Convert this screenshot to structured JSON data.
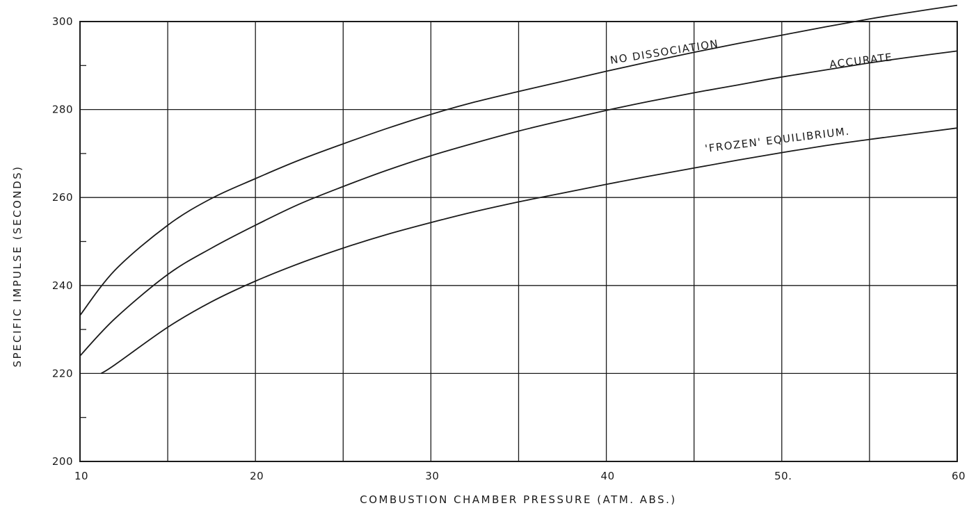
{
  "chart_data": {
    "type": "line",
    "title": "",
    "xlabel": "COMBUSTION CHAMBER PRESSURE (ATM. ABS.)",
    "ylabel": "SPECIFIC IMPULSE (SECONDS)",
    "xlim": [
      10,
      60
    ],
    "ylim": [
      200,
      300
    ],
    "x_ticks": [
      10,
      20,
      30,
      40,
      50,
      60
    ],
    "x_tick_labels": [
      "10",
      "20",
      "30",
      "40",
      "50.",
      "60"
    ],
    "y_ticks": [
      200,
      220,
      240,
      260,
      280,
      300
    ],
    "y_tick_labels": [
      "200",
      "220",
      "240",
      "260",
      "280",
      "300"
    ],
    "grid": true,
    "x": [
      10,
      12,
      15,
      17.5,
      20,
      22.5,
      25,
      27.5,
      30,
      32.5,
      35,
      37.5,
      40,
      42.5,
      45,
      47.5,
      50,
      52.5,
      55,
      57.5,
      60
    ],
    "series": [
      {
        "name": "NO DISSOCIATION",
        "values": [
          233.2,
          243.5,
          253.7,
          259.8,
          264.3,
          268.5,
          272.2,
          275.7,
          278.9,
          281.7,
          284.1,
          286.4,
          288.7,
          290.9,
          293.0,
          295.0,
          296.9,
          298.8,
          300.6,
          302.2,
          303.7
        ]
      },
      {
        "name": "ACCURATE",
        "values": [
          224.0,
          232.5,
          242.5,
          248.5,
          253.7,
          258.5,
          262.5,
          266.2,
          269.5,
          272.4,
          275.1,
          277.5,
          279.8,
          281.9,
          283.8,
          285.6,
          287.4,
          289.0,
          290.6,
          292.0,
          293.3
        ]
      },
      {
        "name": "'FROZEN' EQUILIBRIUM.",
        "values": [
          null,
          222.0,
          230.5,
          236.3,
          241.0,
          245.0,
          248.5,
          251.6,
          254.3,
          256.8,
          259.0,
          261.0,
          263.0,
          264.9,
          266.7,
          268.5,
          270.2,
          271.8,
          273.2,
          274.5,
          275.8
        ]
      }
    ]
  }
}
